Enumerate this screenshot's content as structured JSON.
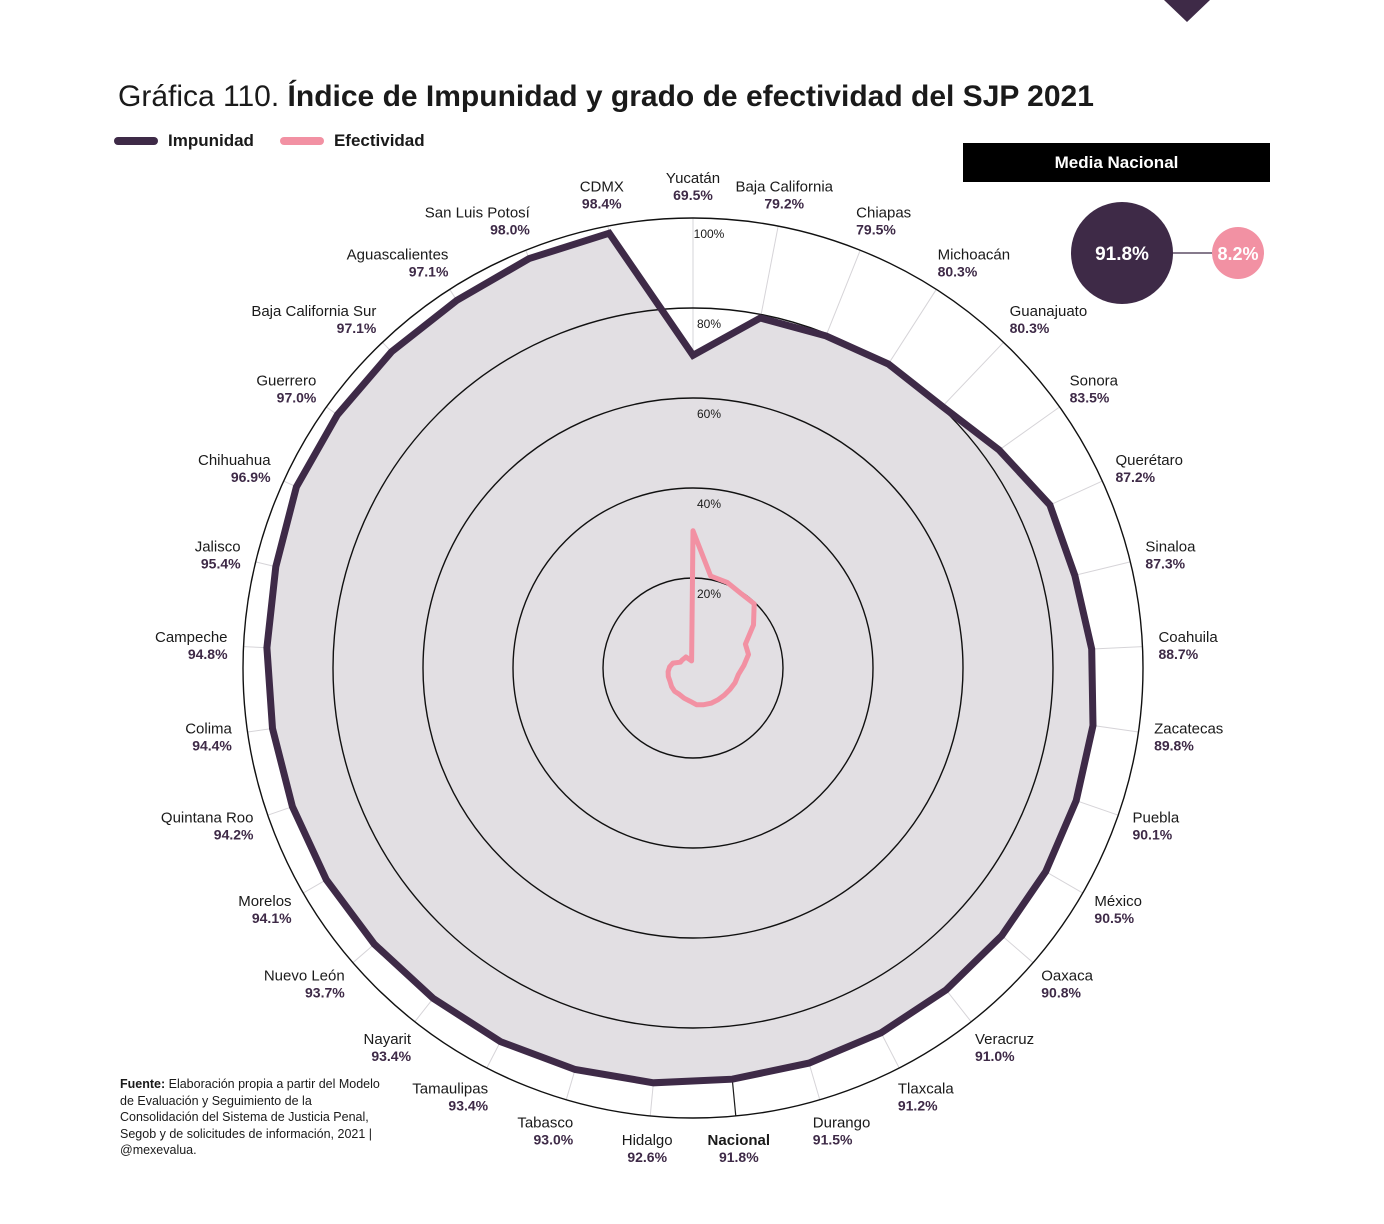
{
  "header": {
    "title_prefix": "Gráfica 110.",
    "title_main": "Índice de Impunidad y grado de efectividad del SJP 2021"
  },
  "legend": [
    {
      "label": "Impunidad",
      "color": "#3e2a47"
    },
    {
      "label": "Efectividad",
      "color": "#f291a3"
    }
  ],
  "media_nacional": {
    "label": "Media Nacional",
    "impunidad": "91.8%",
    "efectividad": "8.2%"
  },
  "source": {
    "label": "Fuente:",
    "text": " Elaboración propia a partir del Modelo de Evaluación y Seguimiento de la Consolidación del Sistema de Justicia Penal, Segob y de solicitudes de información, 2021 | @mexevalua."
  },
  "chart_data": {
    "type": "radar",
    "title": "Índice de Impunidad y grado de efectividad del SJP 2021",
    "radial_ticks": [
      "20%",
      "40%",
      "60%",
      "80%",
      "100%"
    ],
    "rlim": [
      0,
      100
    ],
    "colors": {
      "impunidad": "#3e2a47",
      "efectividad": "#f291a3",
      "fill": "#e2dfe3"
    },
    "categories": [
      {
        "name": "Yucatán",
        "label": "69.5%",
        "impunidad": 69.5
      },
      {
        "name": "Baja  California",
        "label": "79.2%",
        "impunidad": 79.2
      },
      {
        "name": "Chiapas",
        "label": "79.5%",
        "impunidad": 79.5
      },
      {
        "name": "Michoacán",
        "label": "80.3%",
        "impunidad": 80.3
      },
      {
        "name": "Guanajuato",
        "label": "80.3%",
        "impunidad": 80.3
      },
      {
        "name": "Sonora",
        "label": "83.5%",
        "impunidad": 83.5
      },
      {
        "name": "Querétaro",
        "label": "87.2%",
        "impunidad": 87.2
      },
      {
        "name": "Sinaloa",
        "label": "87.3%",
        "impunidad": 87.3
      },
      {
        "name": "Coahuila",
        "label": "88.7%",
        "impunidad": 88.7
      },
      {
        "name": "Zacatecas",
        "label": "89.8%",
        "impunidad": 89.8
      },
      {
        "name": "Puebla",
        "label": "90.1%",
        "impunidad": 90.1
      },
      {
        "name": "México",
        "label": "90.5%",
        "impunidad": 90.5
      },
      {
        "name": "Oaxaca",
        "label": "90.8%",
        "impunidad": 90.8
      },
      {
        "name": "Veracruz",
        "label": "91.0%",
        "impunidad": 91.0
      },
      {
        "name": "Tlaxcala",
        "label": "91.2%",
        "impunidad": 91.2
      },
      {
        "name": "Durango",
        "label": "91.5%",
        "impunidad": 91.5
      },
      {
        "name": "Nacional",
        "label": "91.8%",
        "impunidad": 91.8,
        "bold": true
      },
      {
        "name": "Hidalgo",
        "label": "92.6%",
        "impunidad": 92.6
      },
      {
        "name": "Tabasco",
        "label": "93.0%",
        "impunidad": 93.0
      },
      {
        "name": "Tamaulipas",
        "label": "93.4%",
        "impunidad": 93.4
      },
      {
        "name": "Nayarit",
        "label": "93.4%",
        "impunidad": 93.4
      },
      {
        "name": "Nuevo León",
        "label": "93.7%",
        "impunidad": 93.7
      },
      {
        "name": "Morelos",
        "label": "94.1%",
        "impunidad": 94.1
      },
      {
        "name": "Quintana Roo",
        "label": "94.2%",
        "impunidad": 94.2
      },
      {
        "name": "Colima",
        "label": "94.4%",
        "impunidad": 94.4
      },
      {
        "name": "Campeche",
        "label": "94.8%",
        "impunidad": 94.8
      },
      {
        "name": "Jalisco",
        "label": "95.4%",
        "impunidad": 95.4
      },
      {
        "name": "Chihuahua",
        "label": "96.9%",
        "impunidad": 96.9
      },
      {
        "name": "Guerrero",
        "label": "97.0%",
        "impunidad": 97.0
      },
      {
        "name": "Baja  California Sur",
        "label": "97.1%",
        "impunidad": 97.1
      },
      {
        "name": "Aguascalientes",
        "label": "97.1%",
        "impunidad": 97.1
      },
      {
        "name": "San Luis Potosí",
        "label": "98.0%",
        "impunidad": 98.0
      },
      {
        "name": "CDMX",
        "label": "98.4%",
        "impunidad": 98.4
      }
    ]
  }
}
